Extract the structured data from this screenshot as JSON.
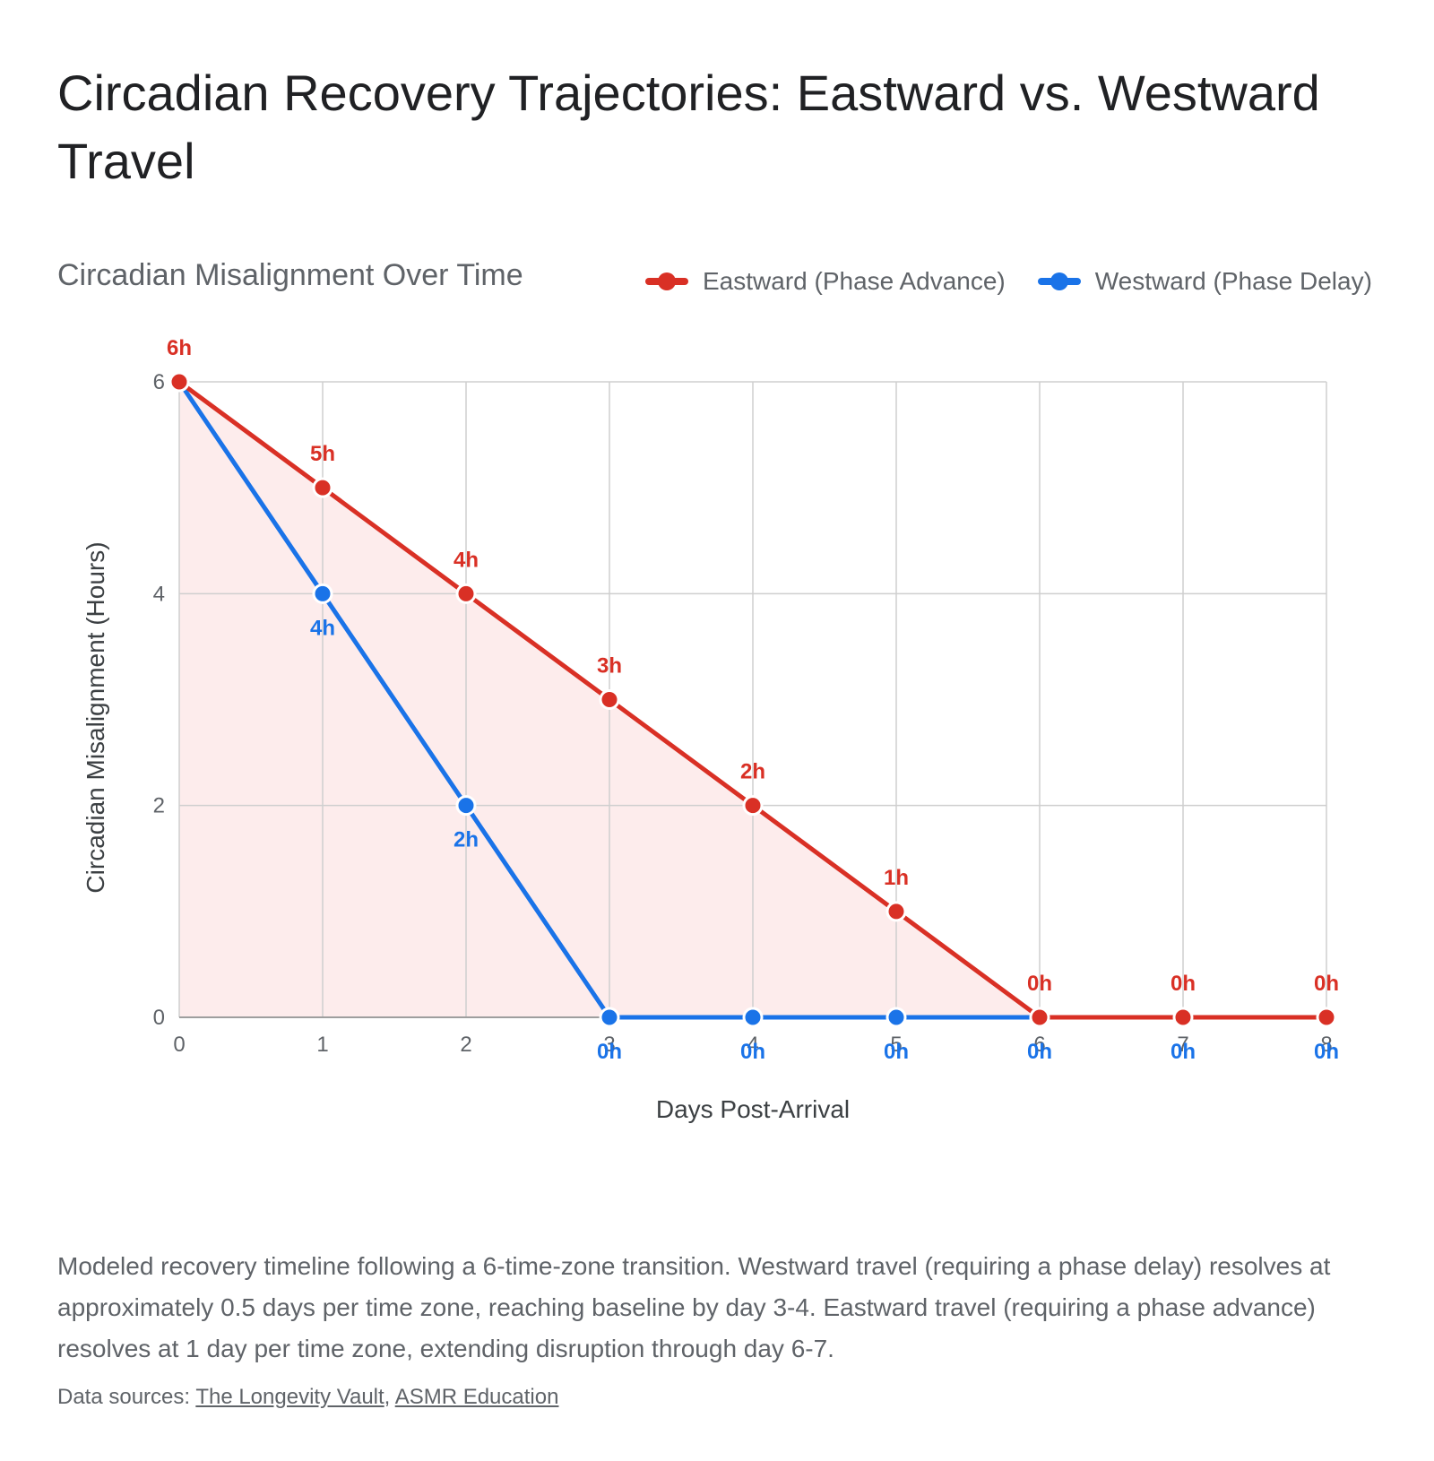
{
  "page": {
    "title": "Circadian Recovery Trajectories: Eastward vs. Westward Travel",
    "caption": "Modeled recovery timeline following a 6-time-zone transition. Westward travel (requiring a phase delay) resolves at approximately 0.5 days per time zone, reaching baseline by day 3-4. Eastward travel (requiring a phase advance) resolves at 1 day per time zone, extending disruption through day 6-7.",
    "sources_prefix": "Data sources:",
    "sources": [
      "The Longevity Vault",
      "ASMR Education"
    ],
    "sources_separator": ","
  },
  "colors": {
    "eastward": "#d93025",
    "westward": "#1a73e8",
    "area": "#fdecec",
    "grid": "#cfcfcf",
    "axis_text": "#5f6368"
  },
  "chart_data": {
    "type": "line",
    "title": "Circadian Misalignment Over Time",
    "xlabel": "Days Post-Arrival",
    "ylabel": "Circadian Misalignment (Hours)",
    "x": [
      0,
      1,
      2,
      3,
      4,
      5,
      6,
      7,
      8
    ],
    "xlim": [
      0,
      8
    ],
    "ylim": [
      0,
      6
    ],
    "yticks": [
      0,
      2,
      4,
      6
    ],
    "grid": true,
    "legend_position": "top-right",
    "series": [
      {
        "name": "Eastward (Phase Advance)",
        "color": "#d93025",
        "values": [
          6,
          5,
          4,
          3,
          2,
          1,
          0,
          0,
          0
        ],
        "labels": [
          "6h",
          "5h",
          "4h",
          "3h",
          "2h",
          "1h",
          "0h",
          "0h",
          "0h"
        ],
        "area_fill": true,
        "label_position": "above"
      },
      {
        "name": "Westward (Phase Delay)",
        "color": "#1a73e8",
        "values": [
          null,
          4,
          2,
          0,
          0,
          0,
          0,
          0,
          0
        ],
        "labels": [
          "",
          "4h",
          "2h",
          "0h",
          "0h",
          "0h",
          "0h",
          "0h",
          "0h"
        ],
        "area_fill": false,
        "label_position": "below"
      }
    ]
  }
}
